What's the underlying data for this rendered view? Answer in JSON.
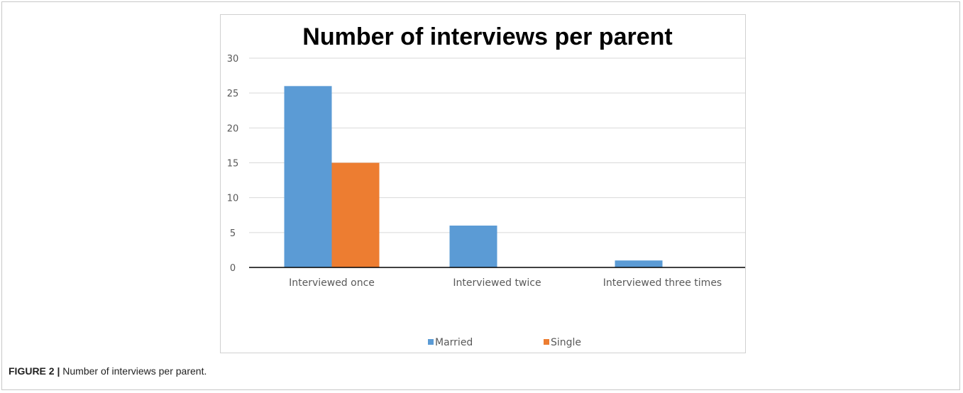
{
  "figure": {
    "label": "FIGURE 2 |",
    "caption": "Number of interviews per parent."
  },
  "chart_data": {
    "type": "bar",
    "title": "Number of interviews per parent",
    "xlabel": "",
    "ylabel": "",
    "categories": [
      "Interviewed once",
      "Interviewed twice",
      "Interviewed three times"
    ],
    "series": [
      {
        "name": "Married",
        "values": [
          26,
          6,
          1
        ],
        "color": "#5b9bd5"
      },
      {
        "name": "Single",
        "values": [
          15,
          0,
          0
        ],
        "color": "#ed7d31"
      }
    ],
    "ylim": [
      0,
      30
    ],
    "yticks": [
      "0",
      "5",
      "10",
      "15",
      "20",
      "25",
      "30"
    ],
    "grid": true,
    "legend_position": "bottom"
  }
}
